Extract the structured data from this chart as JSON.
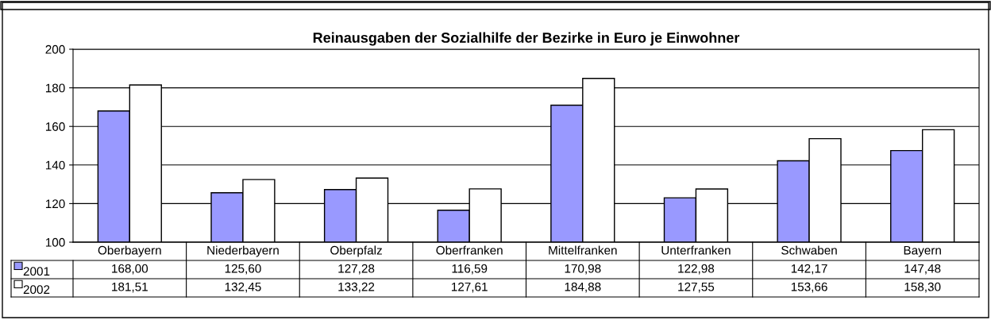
{
  "chart_data": {
    "type": "bar",
    "title": "Reinausgaben der Sozialhilfe der Bezirke in Euro je Einwohner",
    "categories": [
      "Oberbayern",
      "Niederbayern",
      "Oberpfalz",
      "Oberfranken",
      "Mittelfranken",
      "Unterfranken",
      "Schwaben",
      "Bayern"
    ],
    "series": [
      {
        "name": "2001",
        "color": "#9999ff",
        "values": [
          168.0,
          125.6,
          127.28,
          116.59,
          170.98,
          122.98,
          142.17,
          147.48
        ],
        "value_labels": [
          "168,00",
          "125,60",
          "127,28",
          "116,59",
          "170,98",
          "122,98",
          "142,17",
          "147,48"
        ]
      },
      {
        "name": "2002",
        "color": "#ffffff",
        "values": [
          181.51,
          132.45,
          133.22,
          127.61,
          184.88,
          127.55,
          153.66,
          158.3
        ],
        "value_labels": [
          "181,51",
          "132,45",
          "133,22",
          "127,61",
          "184,88",
          "127,55",
          "153,66",
          "158,30"
        ]
      }
    ],
    "ylim": [
      100,
      200
    ],
    "yticks": [
      100,
      120,
      140,
      160,
      180,
      200
    ],
    "grid": "y",
    "legend": "bottom left"
  }
}
